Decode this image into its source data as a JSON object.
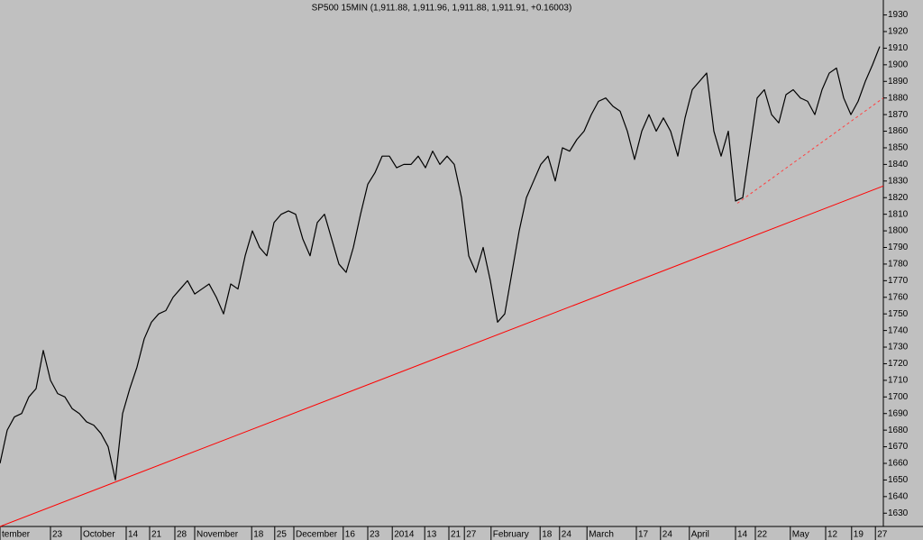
{
  "chart_data": {
    "type": "line",
    "title": "SP500 15MIN (1,911.88, 1,911.96, 1,911.88, 1,911.91, +0.16003)",
    "x": [
      0,
      1,
      2,
      3,
      4,
      5,
      6,
      7,
      8,
      9,
      10,
      11,
      12,
      13,
      14,
      15,
      16,
      17,
      18,
      19,
      20,
      21,
      22,
      23,
      24,
      25,
      26,
      27,
      28,
      29,
      30,
      31,
      32,
      33,
      34,
      35,
      36,
      37,
      38,
      39,
      40,
      41,
      42,
      43,
      44,
      45,
      46,
      47,
      48,
      49,
      50,
      51,
      52,
      53,
      54,
      55,
      56,
      57,
      58,
      59,
      60,
      61,
      62,
      63,
      64,
      65,
      66,
      67,
      68,
      69,
      70,
      71,
      72,
      73,
      74,
      75,
      76,
      77,
      78,
      79,
      80,
      81,
      82,
      83,
      84,
      85,
      86,
      87,
      88,
      89,
      90,
      91,
      92,
      93,
      94,
      95,
      96,
      97,
      98,
      99,
      100,
      101,
      102,
      103,
      104,
      105,
      106,
      107,
      108,
      109,
      110,
      111,
      112,
      113,
      114,
      115,
      116,
      117,
      118,
      119,
      120,
      121,
      122
    ],
    "series": [
      {
        "name": "SP500",
        "color": "#000000",
        "values": [
          1660,
          1680,
          1688,
          1690,
          1700,
          1705,
          1728,
          1710,
          1702,
          1700,
          1693,
          1690,
          1685,
          1683,
          1678,
          1670,
          1650,
          1690,
          1705,
          1718,
          1735,
          1745,
          1750,
          1752,
          1760,
          1765,
          1770,
          1762,
          1765,
          1768,
          1760,
          1750,
          1768,
          1765,
          1785,
          1800,
          1790,
          1785,
          1805,
          1810,
          1812,
          1810,
          1795,
          1785,
          1805,
          1810,
          1795,
          1780,
          1775,
          1790,
          1810,
          1828,
          1835,
          1845,
          1845,
          1838,
          1840,
          1840,
          1845,
          1838,
          1848,
          1840,
          1845,
          1840,
          1820,
          1785,
          1775,
          1790,
          1770,
          1745,
          1750,
          1775,
          1800,
          1820,
          1830,
          1840,
          1845,
          1830,
          1850,
          1848,
          1855,
          1860,
          1870,
          1878,
          1880,
          1875,
          1872,
          1860,
          1843,
          1860,
          1870,
          1860,
          1868,
          1860,
          1845,
          1868,
          1885,
          1890,
          1895,
          1860,
          1845,
          1860,
          1818,
          1820,
          1850,
          1880,
          1885,
          1870,
          1865,
          1882,
          1885,
          1880,
          1878,
          1870,
          1885,
          1895,
          1898,
          1880,
          1870,
          1878,
          1890,
          1900,
          1911
        ]
      }
    ],
    "trendlines": [
      {
        "x": [
          0,
          122.5
        ],
        "y": [
          1622,
          1827
        ],
        "color": "#ff0000",
        "style": "solid"
      },
      {
        "x": [
          102.25,
          122.5
        ],
        "y": [
          1816.6,
          1880
        ],
        "color": "#ff4040",
        "style": "dashed"
      }
    ],
    "xlim": [
      0,
      122.5
    ],
    "ylim": [
      1622,
      1939
    ],
    "yticks": [
      1630,
      1640,
      1650,
      1660,
      1670,
      1680,
      1690,
      1700,
      1710,
      1720,
      1730,
      1740,
      1750,
      1760,
      1770,
      1780,
      1790,
      1800,
      1810,
      1820,
      1830,
      1840,
      1850,
      1860,
      1870,
      1880,
      1890,
      1900,
      1910,
      1920,
      1930
    ],
    "xticks": [
      {
        "value": 0,
        "label": "tember"
      },
      {
        "value": 7,
        "label": "23"
      },
      {
        "value": 11.25,
        "label": "October"
      },
      {
        "value": 17.5,
        "label": "14"
      },
      {
        "value": 20.75,
        "label": "21"
      },
      {
        "value": 24.25,
        "label": "28"
      },
      {
        "value": 27,
        "label": "November"
      },
      {
        "value": 34.9,
        "label": "18"
      },
      {
        "value": 38.1,
        "label": "25"
      },
      {
        "value": 40.75,
        "label": "December"
      },
      {
        "value": 47.6,
        "label": "16"
      },
      {
        "value": 51,
        "label": "23"
      },
      {
        "value": 54.4,
        "label": "2014"
      },
      {
        "value": 58.9,
        "label": "13"
      },
      {
        "value": 62.25,
        "label": "21"
      },
      {
        "value": 64.4,
        "label": "27"
      },
      {
        "value": 68.1,
        "label": "February"
      },
      {
        "value": 74.9,
        "label": "18"
      },
      {
        "value": 77.6,
        "label": "24"
      },
      {
        "value": 81.4,
        "label": "March"
      },
      {
        "value": 88.25,
        "label": "17"
      },
      {
        "value": 91.6,
        "label": "24"
      },
      {
        "value": 95.6,
        "label": "April"
      },
      {
        "value": 102,
        "label": "14"
      },
      {
        "value": 104.75,
        "label": "22"
      },
      {
        "value": 109.6,
        "label": "May"
      },
      {
        "value": 114.5,
        "label": "12"
      },
      {
        "value": 118.1,
        "label": "19"
      },
      {
        "value": 121.4,
        "label": "27"
      }
    ],
    "background": "#c0c0c0"
  }
}
